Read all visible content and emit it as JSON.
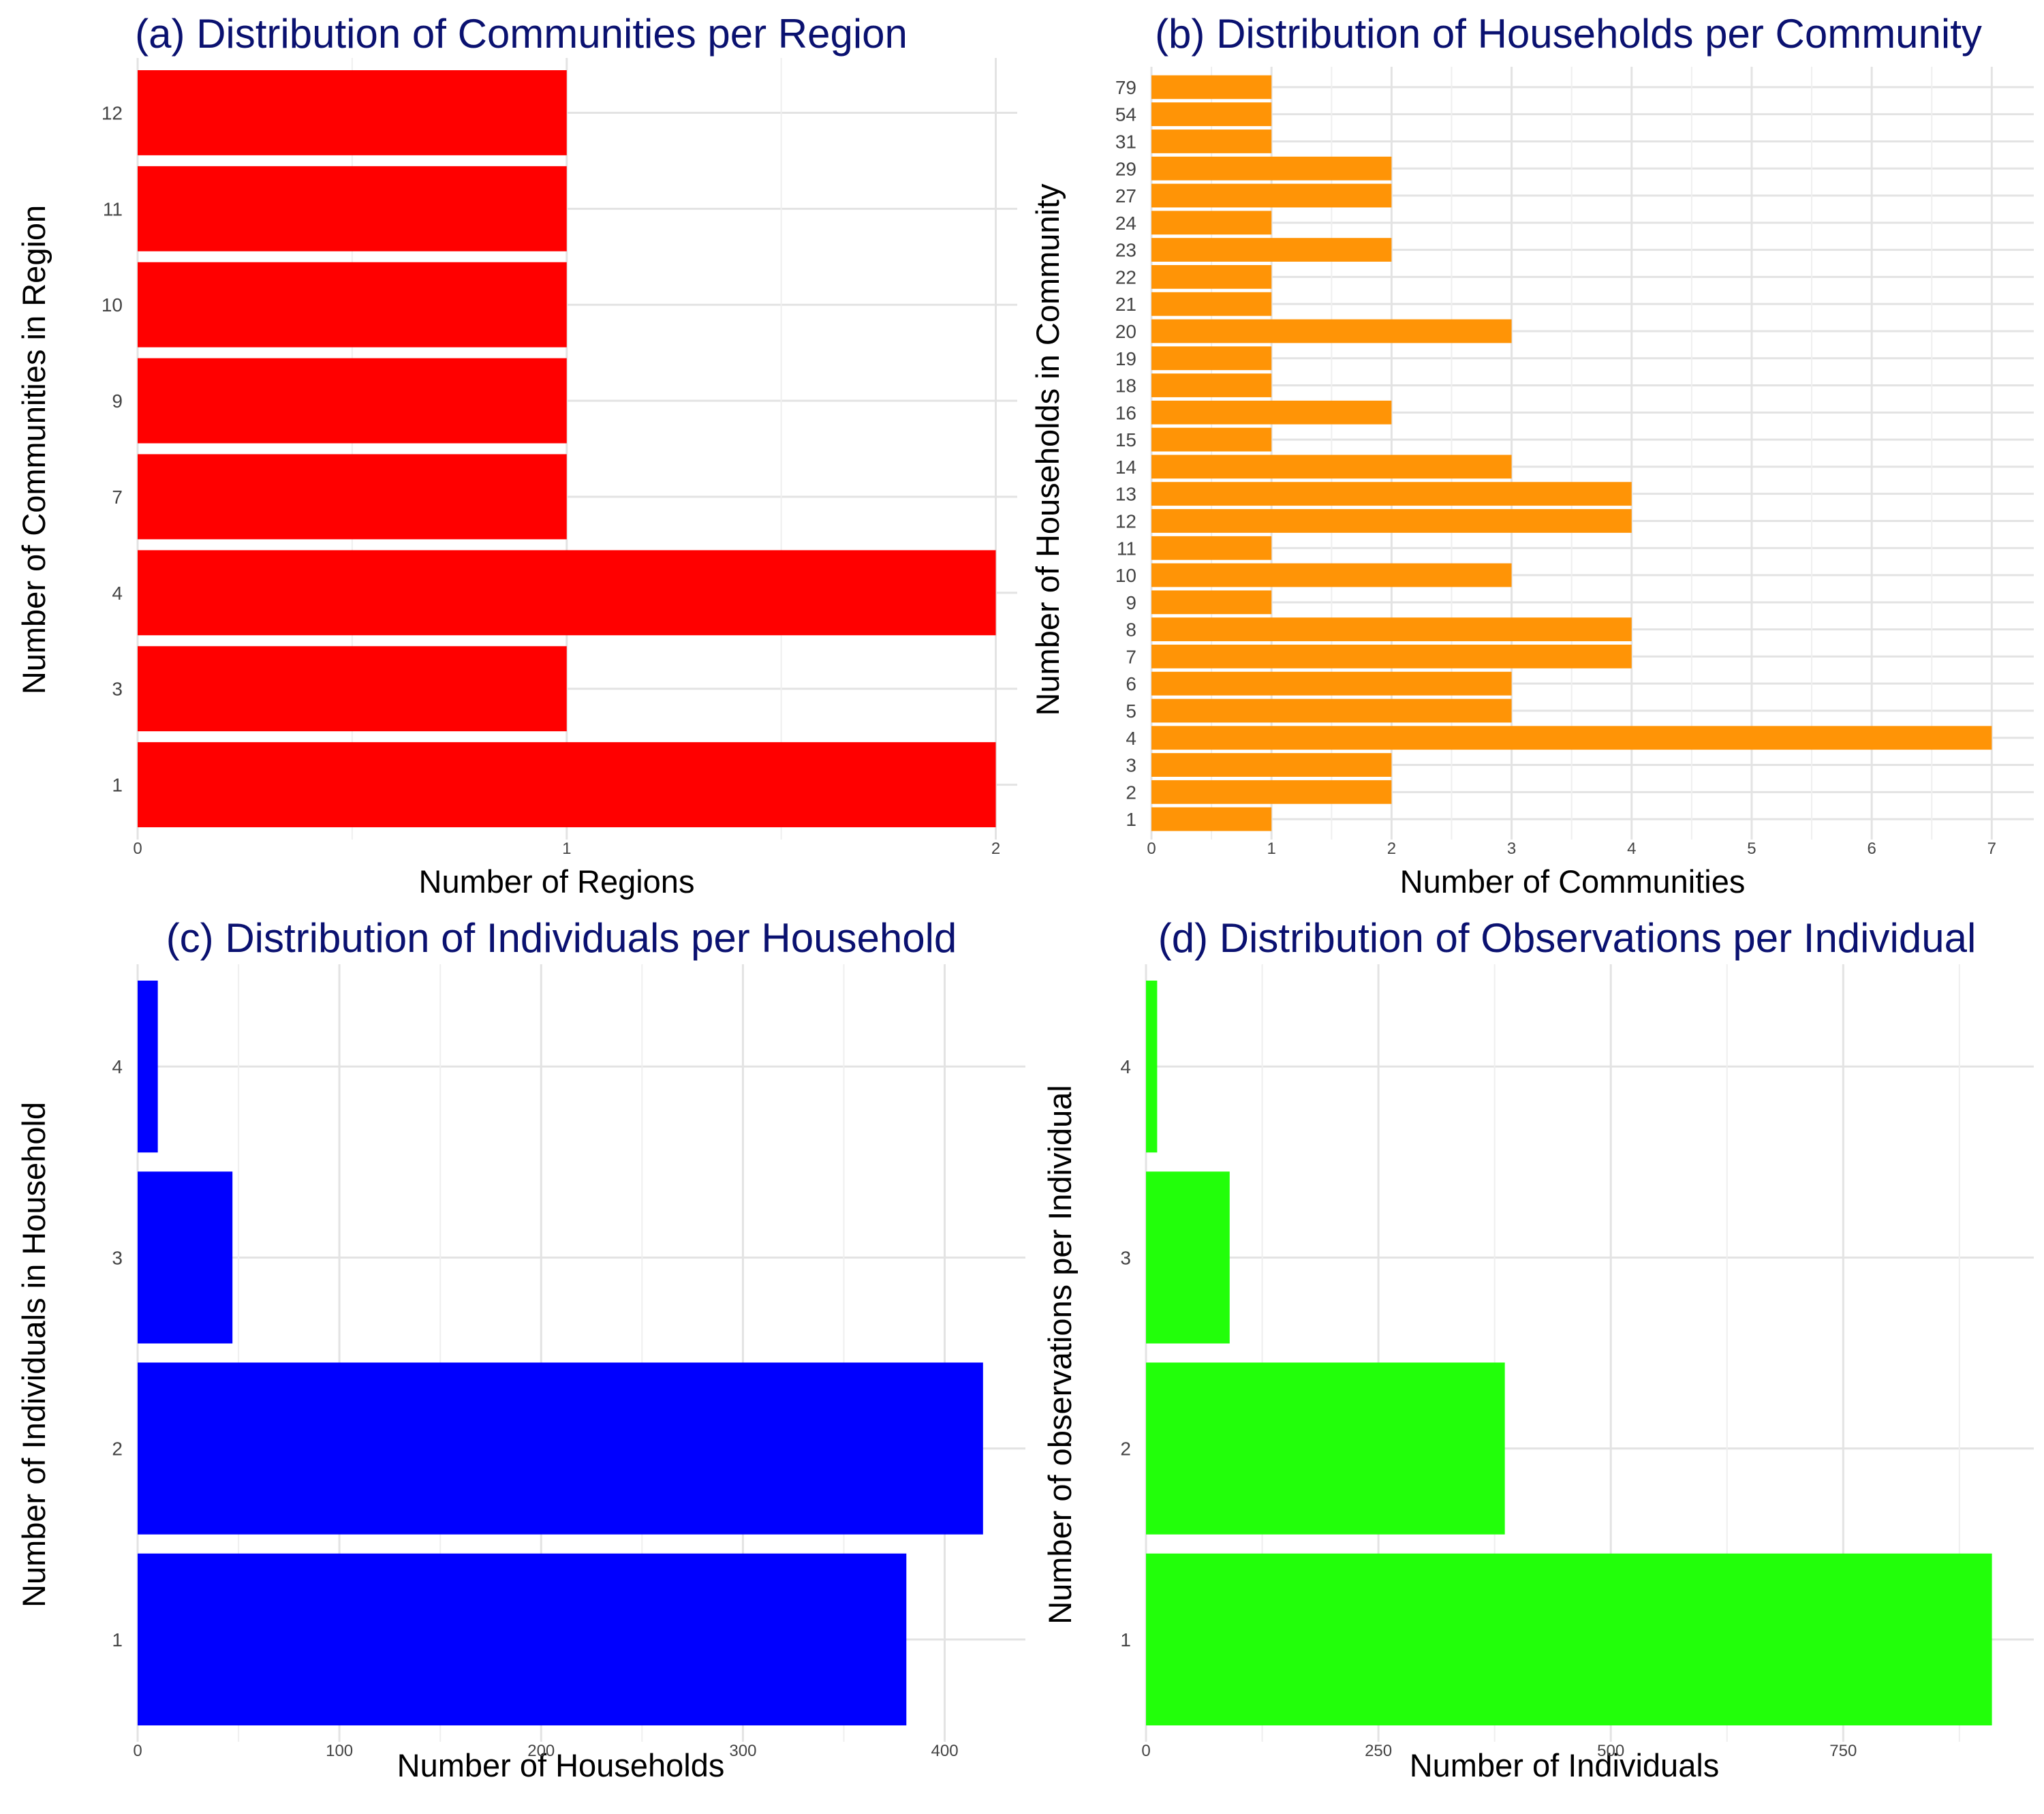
{
  "chart_data": [
    {
      "type": "bar",
      "orientation": "horizontal",
      "title": "(a) Distribution of Communities per Region",
      "xlabel": "Number of Regions",
      "ylabel": "Number of Communities in Region",
      "categories": [
        "1",
        "3",
        "4",
        "7",
        "9",
        "10",
        "11",
        "12"
      ],
      "values": [
        2,
        1,
        2,
        1,
        1,
        1,
        1,
        1
      ],
      "xlim": [
        0,
        2.05
      ],
      "xticks": [
        0,
        1,
        2
      ],
      "color": "#ff0000",
      "grid": true
    },
    {
      "type": "bar",
      "orientation": "horizontal",
      "title": "(b) Distribution of Households per Community",
      "xlabel": "Number of Communities",
      "ylabel": "Number of Households in Community",
      "categories": [
        "1",
        "2",
        "3",
        "4",
        "5",
        "6",
        "7",
        "8",
        "9",
        "10",
        "11",
        "12",
        "13",
        "14",
        "15",
        "16",
        "18",
        "19",
        "20",
        "21",
        "22",
        "23",
        "24",
        "27",
        "29",
        "31",
        "54",
        "79"
      ],
      "values": [
        1,
        2,
        2,
        7,
        3,
        3,
        4,
        4,
        1,
        3,
        1,
        4,
        4,
        3,
        1,
        2,
        1,
        1,
        3,
        1,
        1,
        2,
        1,
        2,
        2,
        1,
        1,
        1
      ],
      "xlim": [
        0,
        7.35
      ],
      "xticks": [
        0,
        1,
        2,
        3,
        4,
        5,
        6,
        7
      ],
      "color": "#ff9406",
      "grid": true
    },
    {
      "type": "bar",
      "orientation": "horizontal",
      "title": "(c) Distribution of Individuals per Household",
      "xlabel": "Number of Households",
      "ylabel": "Number of Individuals in Household",
      "categories": [
        "1",
        "2",
        "3",
        "4"
      ],
      "values": [
        381,
        419,
        47,
        10
      ],
      "xlim": [
        0,
        440
      ],
      "xticks": [
        0,
        100,
        200,
        300,
        400
      ],
      "color": "#0000ff",
      "grid": true
    },
    {
      "type": "bar",
      "orientation": "horizontal",
      "title": "(d) Distribution of Observations per Individual",
      "xlabel": "Number of Individuals",
      "ylabel": "Number of observations per Individual",
      "categories": [
        "1",
        "2",
        "3",
        "4"
      ],
      "values": [
        910,
        386,
        90,
        12
      ],
      "xlim": [
        0,
        955
      ],
      "xticks": [
        0,
        250,
        500,
        750
      ],
      "color": "#22ff0a",
      "grid": true
    }
  ]
}
